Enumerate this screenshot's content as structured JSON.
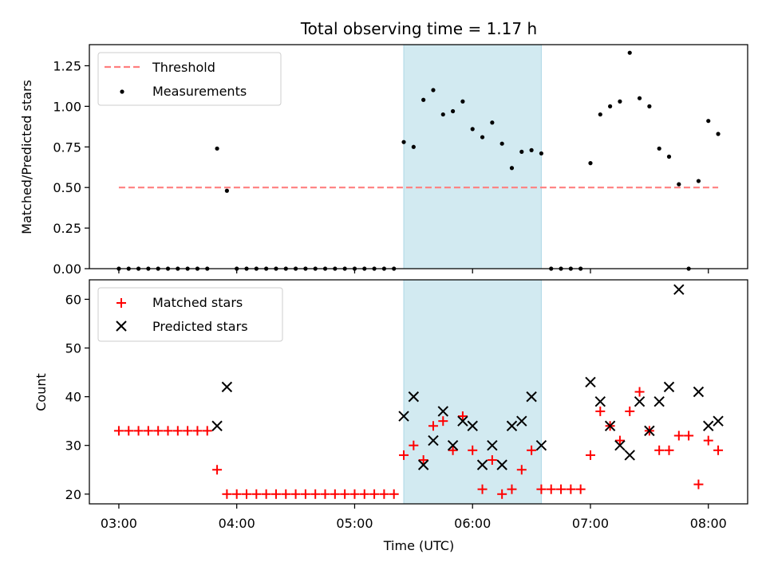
{
  "chart_data": [
    {
      "type": "scatter",
      "title": "Total observing time = 1.17 h",
      "xlabel": "",
      "ylabel": "Matched/Predicted stars",
      "xlim": [
        "02:45",
        "08:20"
      ],
      "ylim": [
        0,
        1.38
      ],
      "yticks": [
        "0.00",
        "0.25",
        "0.50",
        "0.75",
        "1.00",
        "1.25"
      ],
      "xticks": [
        "03:00",
        "04:00",
        "05:00",
        "06:00",
        "07:00",
        "08:00"
      ],
      "shaded_span": {
        "start": "05:25",
        "end": "06:35",
        "color": "#add8e6"
      },
      "legend": {
        "placement": "upper left",
        "entries": [
          "Threshold",
          "Measurements"
        ]
      },
      "series": [
        {
          "name": "Threshold",
          "style": "dashed line",
          "color": "#ff7f7f",
          "x": [
            "03:00",
            "08:05"
          ],
          "y": [
            0.5,
            0.5
          ]
        },
        {
          "name": "Measurements",
          "style": "dot",
          "color": "#000000",
          "x": [
            "03:00",
            "03:05",
            "03:10",
            "03:15",
            "03:20",
            "03:25",
            "03:30",
            "03:35",
            "03:40",
            "03:45",
            "03:50",
            "03:55",
            "04:00",
            "04:05",
            "04:10",
            "04:15",
            "04:20",
            "04:25",
            "04:30",
            "04:35",
            "04:40",
            "04:45",
            "04:50",
            "04:55",
            "05:00",
            "05:05",
            "05:10",
            "05:15",
            "05:20",
            "05:25",
            "05:30",
            "05:35",
            "05:40",
            "05:45",
            "05:50",
            "05:55",
            "06:00",
            "06:05",
            "06:10",
            "06:15",
            "06:20",
            "06:25",
            "06:30",
            "06:35",
            "06:40",
            "06:45",
            "06:50",
            "06:55",
            "07:00",
            "07:05",
            "07:10",
            "07:15",
            "07:20",
            "07:25",
            "07:30",
            "07:35",
            "07:40",
            "07:45",
            "07:50",
            "07:55",
            "08:00",
            "08:05"
          ],
          "y": [
            0,
            0,
            0,
            0,
            0,
            0,
            0,
            0,
            0,
            0,
            0.74,
            0.48,
            0,
            0,
            0,
            0,
            0,
            0,
            0,
            0,
            0,
            0,
            0,
            0,
            0,
            0,
            0,
            0,
            0,
            0.78,
            0.75,
            1.04,
            1.1,
            0.95,
            0.97,
            1.03,
            0.86,
            0.81,
            0.9,
            0.77,
            0.62,
            0.72,
            0.73,
            0.71,
            0,
            0,
            0,
            0,
            0.65,
            0.95,
            1.0,
            1.03,
            1.33,
            1.05,
            1.0,
            0.74,
            0.69,
            0.52,
            0,
            0.54,
            0.91,
            0.83
          ]
        }
      ]
    },
    {
      "type": "scatter",
      "title": "",
      "xlabel": "Time (UTC)",
      "ylabel": "Count",
      "xlim": [
        "02:45",
        "08:20"
      ],
      "ylim": [
        18,
        64
      ],
      "yticks": [
        "20",
        "30",
        "40",
        "50",
        "60"
      ],
      "xticks": [
        "03:00",
        "04:00",
        "05:00",
        "06:00",
        "07:00",
        "08:00"
      ],
      "shaded_span": {
        "start": "05:25",
        "end": "06:35",
        "color": "#add8e6"
      },
      "legend": {
        "placement": "upper left",
        "entries": [
          "Matched stars",
          "Predicted stars"
        ]
      },
      "series": [
        {
          "name": "Matched stars",
          "marker": "plus",
          "color": "#ff0000",
          "x": [
            "03:00",
            "03:05",
            "03:10",
            "03:15",
            "03:20",
            "03:25",
            "03:30",
            "03:35",
            "03:40",
            "03:45",
            "03:50",
            "03:55",
            "04:00",
            "04:05",
            "04:10",
            "04:15",
            "04:20",
            "04:25",
            "04:30",
            "04:35",
            "04:40",
            "04:45",
            "04:50",
            "04:55",
            "05:00",
            "05:05",
            "05:10",
            "05:15",
            "05:20",
            "05:25",
            "05:30",
            "05:35",
            "05:40",
            "05:45",
            "05:50",
            "05:55",
            "06:00",
            "06:05",
            "06:10",
            "06:15",
            "06:20",
            "06:25",
            "06:30",
            "06:35",
            "06:40",
            "06:45",
            "06:50",
            "06:55",
            "07:00",
            "07:05",
            "07:10",
            "07:15",
            "07:20",
            "07:25",
            "07:30",
            "07:35",
            "07:40",
            "07:45",
            "07:50",
            "07:55",
            "08:00",
            "08:05"
          ],
          "y": [
            33,
            33,
            33,
            33,
            33,
            33,
            33,
            33,
            33,
            33,
            25,
            20,
            20,
            20,
            20,
            20,
            20,
            20,
            20,
            20,
            20,
            20,
            20,
            20,
            20,
            20,
            20,
            20,
            20,
            28,
            30,
            27,
            34,
            35,
            29,
            36,
            29,
            21,
            27,
            20,
            21,
            25,
            29,
            21,
            21,
            21,
            21,
            21,
            28,
            37,
            34,
            31,
            37,
            41,
            33,
            29,
            29,
            32,
            32,
            22,
            31,
            29
          ]
        },
        {
          "name": "Predicted stars",
          "marker": "x",
          "color": "#000000",
          "x": [
            "03:50",
            "03:55",
            "05:25",
            "05:30",
            "05:35",
            "05:40",
            "05:45",
            "05:50",
            "05:55",
            "06:00",
            "06:05",
            "06:10",
            "06:15",
            "06:20",
            "06:25",
            "06:30",
            "06:35",
            "07:00",
            "07:05",
            "07:10",
            "07:15",
            "07:20",
            "07:25",
            "07:30",
            "07:35",
            "07:40",
            "07:45",
            "07:55",
            "08:00",
            "08:05"
          ],
          "y": [
            34,
            42,
            36,
            40,
            26,
            31,
            37,
            30,
            35,
            34,
            26,
            30,
            26,
            34,
            35,
            40,
            30,
            43,
            39,
            34,
            30,
            28,
            39,
            33,
            39,
            42,
            62,
            41,
            34,
            35
          ]
        }
      ]
    }
  ]
}
